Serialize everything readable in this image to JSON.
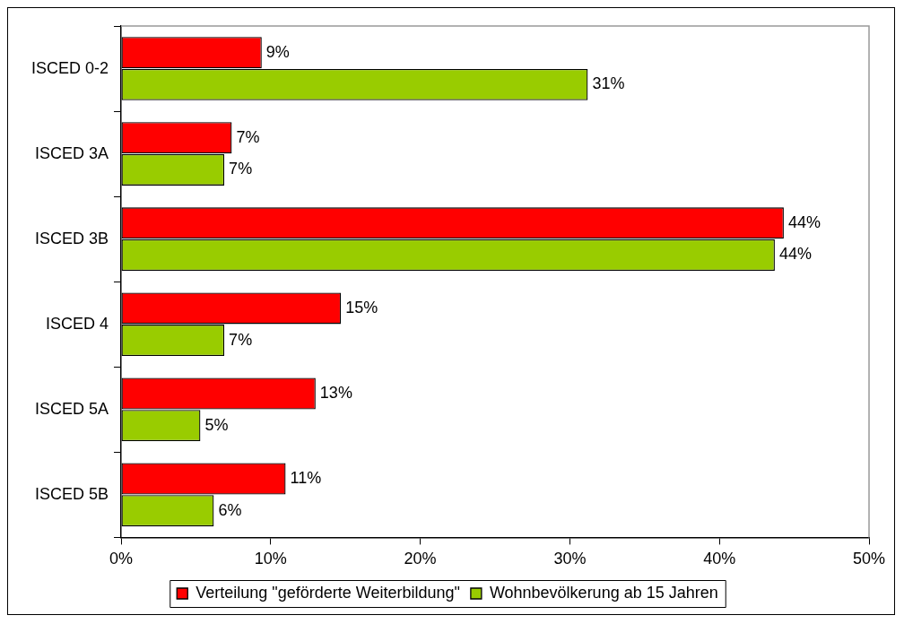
{
  "chart_data": {
    "type": "bar",
    "orientation": "horizontal",
    "categories": [
      "ISCED 0-2",
      "ISCED 3A",
      "ISCED 3B",
      "ISCED 4",
      "ISCED 5A",
      "ISCED 5B"
    ],
    "series": [
      {
        "name": "Verteilung \"geförderte Weiterbildung\"",
        "color": "#ff0000",
        "values": [
          9.4,
          7.4,
          44.3,
          14.7,
          13.0,
          11.0
        ],
        "value_labels": [
          "9%",
          "7%",
          "44%",
          "15%",
          "13%",
          "11%"
        ]
      },
      {
        "name": "Wohnbevölkerung ab 15 Jahren",
        "color": "#99cc00",
        "values": [
          31.2,
          6.9,
          43.7,
          6.9,
          5.3,
          6.2
        ],
        "value_labels": [
          "31%",
          "7%",
          "44%",
          "7%",
          "5%",
          "6%"
        ]
      }
    ],
    "xlim": [
      0,
      50
    ],
    "xticks": [
      {
        "value": 0,
        "label": "0%"
      },
      {
        "value": 10,
        "label": "10%"
      },
      {
        "value": 20,
        "label": "20%"
      },
      {
        "value": 30,
        "label": "30%"
      },
      {
        "value": 40,
        "label": "40%"
      },
      {
        "value": 50,
        "label": "50%"
      }
    ],
    "grid": false,
    "legend": "bottom"
  }
}
